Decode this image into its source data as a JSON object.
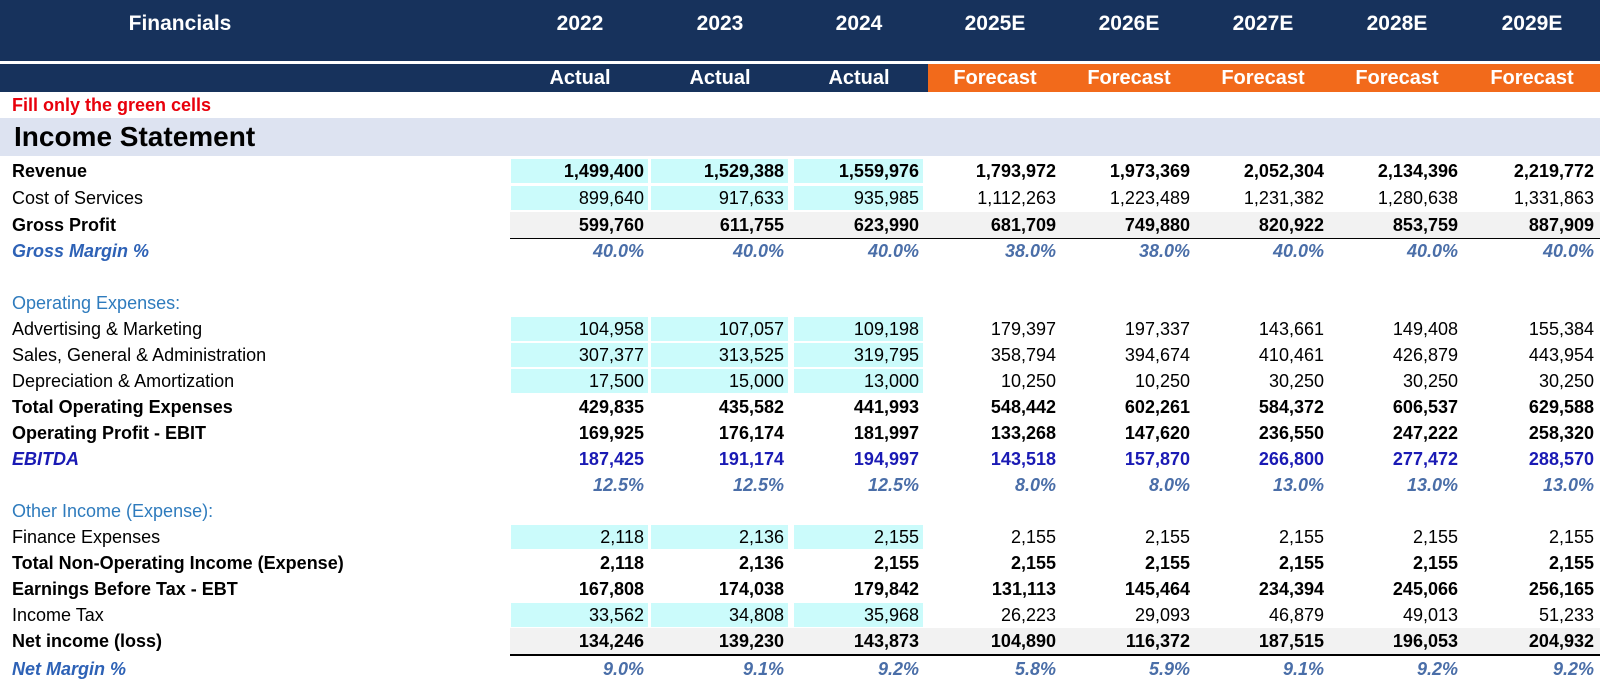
{
  "header": {
    "title": "Financials",
    "years": [
      "2022",
      "2023",
      "2024",
      "2025E",
      "2026E",
      "2027E",
      "2028E",
      "2029E"
    ],
    "types": [
      "Actual",
      "Actual",
      "Actual",
      "Forecast",
      "Forecast",
      "Forecast",
      "Forecast",
      "Forecast"
    ]
  },
  "note": "Fill only the green cells",
  "section_title": "Income Statement",
  "colors": {
    "header_bg": "#17325c",
    "forecast_bg": "#f26a1b",
    "input_cell": "#cbfbfb",
    "note_red": "#e8000b",
    "section_band": "#dde3f1"
  },
  "rows": [
    {
      "label": "Revenue",
      "style": "bold",
      "input": true,
      "values": [
        "1,499,400",
        "1,529,388",
        "1,559,976",
        "1,793,972",
        "1,973,369",
        "2,052,304",
        "2,134,396",
        "2,219,772"
      ]
    },
    {
      "label": "Cost of Services",
      "style": "normal",
      "input": true,
      "values": [
        "899,640",
        "917,633",
        "935,985",
        "1,112,263",
        "1,223,489",
        "1,231,382",
        "1,280,638",
        "1,331,863"
      ]
    },
    {
      "label": "Gross Profit",
      "style": "total",
      "input": false,
      "values": [
        "599,760",
        "611,755",
        "623,990",
        "681,709",
        "749,880",
        "820,922",
        "853,759",
        "887,909"
      ]
    },
    {
      "label": "Gross Margin %",
      "style": "pct",
      "input": false,
      "values": [
        "40.0%",
        "40.0%",
        "40.0%",
        "38.0%",
        "38.0%",
        "40.0%",
        "40.0%",
        "40.0%"
      ]
    },
    {
      "label": "",
      "style": "blank",
      "input": false,
      "values": []
    },
    {
      "label": "Operating Expenses:",
      "style": "section",
      "input": false,
      "values": []
    },
    {
      "label": "Advertising & Marketing",
      "style": "normal",
      "input": true,
      "values": [
        "104,958",
        "107,057",
        "109,198",
        "179,397",
        "197,337",
        "143,661",
        "149,408",
        "155,384"
      ]
    },
    {
      "label": "Sales, General & Administration",
      "style": "normal",
      "input": true,
      "values": [
        "307,377",
        "313,525",
        "319,795",
        "358,794",
        "394,674",
        "410,461",
        "426,879",
        "443,954"
      ]
    },
    {
      "label": "Depreciation & Amortization",
      "style": "normal",
      "input": true,
      "values": [
        "17,500",
        "15,000",
        "13,000",
        "10,250",
        "10,250",
        "30,250",
        "30,250",
        "30,250"
      ]
    },
    {
      "label": "Total Operating Expenses",
      "style": "bold",
      "input": false,
      "values": [
        "429,835",
        "435,582",
        "441,993",
        "548,442",
        "602,261",
        "584,372",
        "606,537",
        "629,588"
      ]
    },
    {
      "label": "Operating Profit - EBIT",
      "style": "bold",
      "input": false,
      "values": [
        "169,925",
        "176,174",
        "181,997",
        "133,268",
        "147,620",
        "236,550",
        "247,222",
        "258,320"
      ]
    },
    {
      "label": "EBITDA",
      "style": "ebitda",
      "input": false,
      "values": [
        "187,425",
        "191,174",
        "194,997",
        "143,518",
        "157,870",
        "266,800",
        "277,472",
        "288,570"
      ]
    },
    {
      "label": "",
      "style": "pct",
      "input": false,
      "values": [
        "12.5%",
        "12.5%",
        "12.5%",
        "8.0%",
        "8.0%",
        "13.0%",
        "13.0%",
        "13.0%"
      ]
    },
    {
      "label": "Other Income (Expense):",
      "style": "section",
      "input": false,
      "values": []
    },
    {
      "label": "Finance Expenses",
      "style": "normal",
      "input": true,
      "values": [
        "2,118",
        "2,136",
        "2,155",
        "2,155",
        "2,155",
        "2,155",
        "2,155",
        "2,155"
      ]
    },
    {
      "label": "Total Non-Operating Income (Expense)",
      "style": "bold",
      "input": false,
      "values": [
        "2,118",
        "2,136",
        "2,155",
        "2,155",
        "2,155",
        "2,155",
        "2,155",
        "2,155"
      ]
    },
    {
      "label": "Earnings Before Tax - EBT",
      "style": "bold",
      "input": false,
      "values": [
        "167,808",
        "174,038",
        "179,842",
        "131,113",
        "145,464",
        "234,394",
        "245,066",
        "256,165"
      ]
    },
    {
      "label": "Income Tax",
      "style": "normal",
      "input": true,
      "values": [
        "33,562",
        "34,808",
        "35,968",
        "26,223",
        "29,093",
        "46,879",
        "49,013",
        "51,233"
      ]
    },
    {
      "label": "Net income (loss)",
      "style": "total",
      "input": false,
      "values": [
        "134,246",
        "139,230",
        "143,873",
        "104,890",
        "116,372",
        "187,515",
        "196,053",
        "204,932"
      ]
    },
    {
      "label": "Net Margin %",
      "style": "pct",
      "input": false,
      "values": [
        "9.0%",
        "9.1%",
        "9.2%",
        "5.8%",
        "5.9%",
        "9.1%",
        "9.2%",
        "9.2%"
      ]
    }
  ]
}
